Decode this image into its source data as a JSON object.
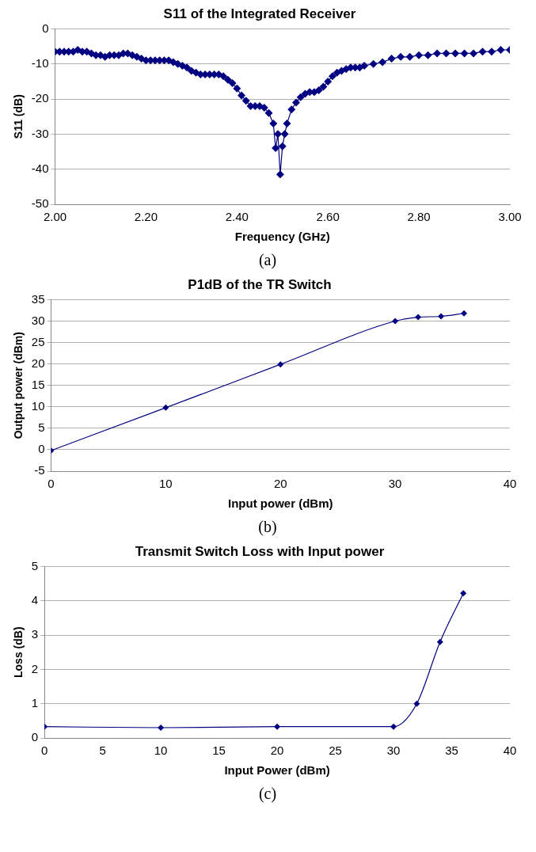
{
  "chart_data": [
    {
      "type": "line",
      "title": "S11 of the Integrated Receiver",
      "xlabel": "Frequency (GHz)",
      "ylabel": "S11 (dB)",
      "annotations": [
        "(a)"
      ],
      "x": [
        2.0,
        2.01,
        2.02,
        2.03,
        2.04,
        2.05,
        2.06,
        2.07,
        2.08,
        2.09,
        2.1,
        2.11,
        2.12,
        2.13,
        2.14,
        2.15,
        2.16,
        2.17,
        2.18,
        2.19,
        2.2,
        2.21,
        2.22,
        2.23,
        2.24,
        2.25,
        2.26,
        2.27,
        2.28,
        2.29,
        2.3,
        2.31,
        2.32,
        2.33,
        2.34,
        2.35,
        2.36,
        2.37,
        2.38,
        2.39,
        2.4,
        2.41,
        2.42,
        2.43,
        2.44,
        2.45,
        2.46,
        2.47,
        2.48,
        2.485,
        2.49,
        2.495,
        2.5,
        2.505,
        2.51,
        2.52,
        2.53,
        2.54,
        2.55,
        2.56,
        2.57,
        2.58,
        2.59,
        2.6,
        2.61,
        2.62,
        2.63,
        2.64,
        2.65,
        2.66,
        2.67,
        2.68,
        2.7,
        2.72,
        2.74,
        2.76,
        2.78,
        2.8,
        2.82,
        2.84,
        2.86,
        2.88,
        2.9,
        2.92,
        2.94,
        2.96,
        2.98,
        3.0
      ],
      "series": [
        {
          "color": "#000080",
          "values": [
            -6.5,
            -6.5,
            -6.5,
            -6.5,
            -6.5,
            -6,
            -6.5,
            -6.5,
            -7,
            -7.5,
            -7.5,
            -8,
            -7.5,
            -7.5,
            -7.5,
            -7,
            -7,
            -7.5,
            -8,
            -8.5,
            -9,
            -9,
            -9,
            -9,
            -9,
            -9,
            -9.5,
            -10,
            -10.5,
            -11,
            -12,
            -12.5,
            -13,
            -13,
            -13,
            -13,
            -13,
            -13.5,
            -14.5,
            -15.5,
            -17,
            -19,
            -20.5,
            -22,
            -22,
            -22,
            -22.5,
            -24,
            -27,
            -34,
            -30,
            -41.5,
            -33.5,
            -30,
            -27,
            -23,
            -21,
            -19.5,
            -18.5,
            -18,
            -18,
            -17.5,
            -16.5,
            -15,
            -13.5,
            -12.5,
            -12,
            -11.5,
            -11,
            -11,
            -11,
            -10.5,
            -10,
            -9.5,
            -8.5,
            -8,
            -8,
            -7.5,
            -7.5,
            -7,
            -7,
            -7,
            -7,
            -7,
            -6.5,
            -6.5,
            -6,
            -6
          ]
        }
      ],
      "xlim": [
        2.0,
        3.0
      ],
      "xticks": [
        {
          "value": 2.0,
          "label": "2.00"
        },
        {
          "value": 2.2,
          "label": "2.20"
        },
        {
          "value": 2.4,
          "label": "2.40"
        },
        {
          "value": 2.6,
          "label": "2.60"
        },
        {
          "value": 2.8,
          "label": "2.80"
        },
        {
          "value": 3.0,
          "label": "3.00"
        }
      ],
      "ylim": [
        -50,
        0
      ],
      "yticks": [
        -50,
        -40,
        -30,
        -20,
        -10,
        0
      ],
      "grid": "y",
      "marker": "diamond",
      "line_style": "solid",
      "legend": false
    },
    {
      "type": "line",
      "title": "P1dB of the TR Switch",
      "xlabel": "Input power (dBm)",
      "ylabel": "Output power (dBm)",
      "annotations": [
        "(b)"
      ],
      "x": [
        0,
        10,
        20,
        30,
        32,
        34,
        36
      ],
      "series": [
        {
          "color": "#000080",
          "values": [
            -0.2,
            9.8,
            19.9,
            30,
            30.9,
            31.1,
            31.8
          ]
        }
      ],
      "xlim": [
        0,
        40
      ],
      "xticks": [
        0,
        10,
        20,
        30,
        40
      ],
      "ylim": [
        -5,
        35
      ],
      "yticks": [
        -5,
        0,
        5,
        10,
        15,
        20,
        25,
        30,
        35
      ],
      "grid": "y",
      "marker": "diamond",
      "line_style": "solid",
      "legend": false
    },
    {
      "type": "line",
      "title": "Transmit Switch Loss with Input power",
      "xlabel": "Input Power (dBm)",
      "ylabel": "Loss (dB)",
      "annotations": [
        "(c)"
      ],
      "x": [
        0,
        10,
        20,
        30,
        32,
        34,
        36
      ],
      "series": [
        {
          "color": "#000080",
          "values": [
            0.33,
            0.3,
            0.33,
            0.33,
            1.0,
            2.8,
            4.22
          ]
        }
      ],
      "xlim": [
        0,
        40
      ],
      "xticks": [
        0,
        5,
        10,
        15,
        20,
        25,
        30,
        35,
        40
      ],
      "ylim": [
        0,
        5
      ],
      "yticks": [
        0,
        1,
        2,
        3,
        4,
        5
      ],
      "grid": "y",
      "marker": "diamond",
      "line_style": "solid",
      "legend": false
    }
  ]
}
